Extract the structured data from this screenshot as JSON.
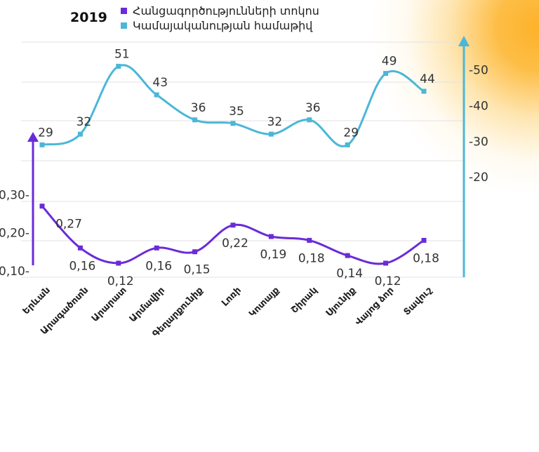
{
  "colors": {
    "purple": "#6a2bd8",
    "blue": "#4bb7d6",
    "sun": "#fdb229",
    "grid": "#e2e2e2",
    "text": "#333333"
  },
  "chart_data": {
    "type": "line",
    "title": "2019",
    "categories": [
      "Երևան",
      "Արագածոտն",
      "Արարատ",
      "Արմավիր",
      "Գեղարքունիք",
      "Լոռի",
      "Կոտայք",
      "Շիրակ",
      "Սյունիք",
      "Վայոց ձոր",
      "Տավուշ"
    ],
    "series": [
      {
        "name": "Հանցագործությունների տոկոս",
        "axis": "left",
        "color": "#6a2bd8",
        "values": [
          0.27,
          0.16,
          0.12,
          0.16,
          0.15,
          0.22,
          0.19,
          0.18,
          0.14,
          0.12,
          0.18
        ],
        "labels": [
          "0,27",
          "0,16",
          "0,12",
          "0,16",
          "0,15",
          "0,22",
          "0,19",
          "0,18",
          "0,14",
          "0,12",
          "0,18"
        ]
      },
      {
        "name": "Կամայականության համաթիվ",
        "axis": "right",
        "color": "#4bb7d6",
        "values": [
          29,
          32,
          51,
          43,
          36,
          35,
          32,
          36,
          29,
          49,
          44
        ],
        "labels": [
          "29",
          "32",
          "51",
          "43",
          "36",
          "35",
          "32",
          "36",
          "29",
          "49",
          "44"
        ]
      }
    ],
    "left_axis": {
      "ticks": [
        0.3,
        0.2,
        0.1
      ],
      "tick_labels": [
        "0,30-",
        "0,20-",
        "0,10-"
      ]
    },
    "right_axis": {
      "ticks": [
        50,
        40,
        30,
        20
      ],
      "tick_labels": [
        "-50",
        "-40",
        "-30",
        "-20"
      ]
    },
    "legend_position": "top-left",
    "grid": true
  }
}
